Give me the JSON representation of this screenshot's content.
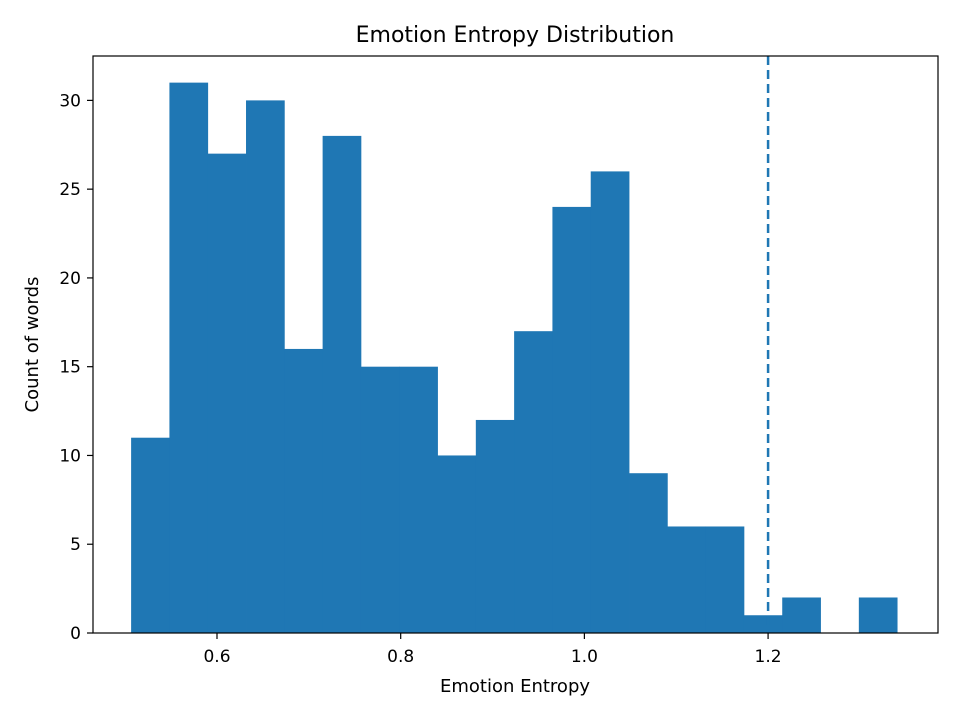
{
  "chart_data": {
    "type": "bar",
    "title": "Emotion Entropy Distribution",
    "xlabel": "Emotion Entropy",
    "ylabel": "Count of words",
    "xlim": [
      0.465,
      1.385
    ],
    "ylim": [
      0,
      32.5
    ],
    "xticks": [
      0.6,
      0.8,
      1.0,
      1.2
    ],
    "xtick_labels": [
      "0.6",
      "0.8",
      "1.0",
      "1.2"
    ],
    "yticks": [
      0,
      5,
      10,
      15,
      20,
      25,
      30
    ],
    "ytick_labels": [
      "0",
      "5",
      "10",
      "15",
      "20",
      "25",
      "30"
    ],
    "bin_edges": [
      0.5065,
      0.5482,
      0.5899,
      0.6316,
      0.6733,
      0.715,
      0.7567,
      0.7984,
      0.8401,
      0.8818,
      0.9235,
      0.9652,
      1.0069,
      1.0486,
      1.0903,
      1.132,
      1.1737,
      1.2154,
      1.2571,
      1.2988,
      1.3405
    ],
    "counts": [
      11,
      31,
      27,
      30,
      16,
      28,
      15,
      15,
      10,
      12,
      17,
      24,
      26,
      9,
      6,
      6,
      1,
      2,
      0,
      2
    ],
    "threshold": 1.2,
    "grid": false,
    "colors": {
      "bar": "#1f77b4",
      "threshold_line": "#1f77b4"
    }
  }
}
